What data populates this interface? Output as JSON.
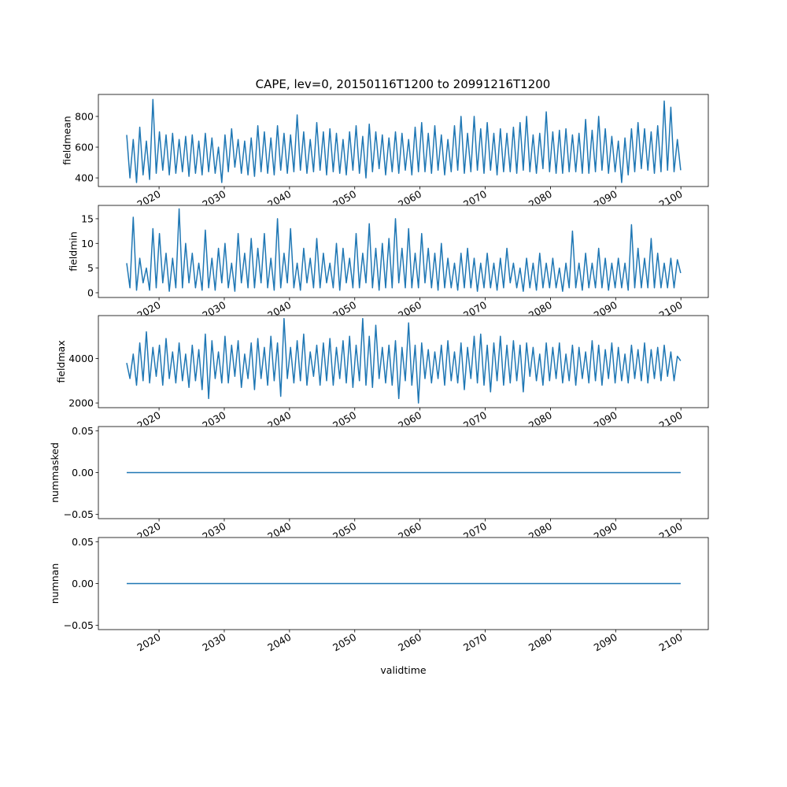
{
  "chart_data": [
    {
      "type": "line",
      "title": "CAPE, lev=0, 20150116T1200 to 20991216T1200",
      "ylabel": "fieldmean",
      "xlabel": "",
      "color": "#1f77b4",
      "x_range": [
        2015.04,
        2099.96
      ],
      "xlim": [
        2010.7,
        2104.2
      ],
      "ylim": [
        344,
        943
      ],
      "xticks": [
        2020,
        2030,
        2040,
        2050,
        2060,
        2070,
        2080,
        2090,
        2100
      ],
      "xtick_labels": [
        "2020",
        "2030",
        "2040",
        "2050",
        "2060",
        "2070",
        "2080",
        "2090",
        "2100"
      ],
      "yticks": [
        400,
        600,
        800
      ],
      "ytick_labels": [
        "400",
        "600",
        "800"
      ],
      "values": [
        680,
        400,
        650,
        370,
        730,
        420,
        640,
        390,
        910,
        430,
        700,
        450,
        680,
        420,
        690,
        430,
        650,
        440,
        670,
        410,
        680,
        430,
        640,
        420,
        690,
        440,
        660,
        430,
        600,
        370,
        680,
        440,
        720,
        470,
        650,
        430,
        640,
        420,
        660,
        410,
        740,
        440,
        700,
        430,
        660,
        420,
        740,
        450,
        690,
        430,
        680,
        440,
        810,
        450,
        700,
        430,
        650,
        440,
        760,
        450,
        700,
        420,
        720,
        440,
        690,
        430,
        650,
        420,
        700,
        450,
        740,
        430,
        670,
        400,
        750,
        440,
        700,
        460,
        680,
        420,
        660,
        440,
        700,
        430,
        690,
        450,
        650,
        420,
        730,
        440,
        760,
        440,
        690,
        430,
        740,
        450,
        680,
        420,
        650,
        440,
        740,
        450,
        800,
        430,
        690,
        440,
        800,
        450,
        720,
        430,
        760,
        450,
        690,
        420,
        720,
        440,
        690,
        440,
        730,
        430,
        760,
        450,
        800,
        440,
        680,
        430,
        690,
        460,
        830,
        440,
        700,
        430,
        710,
        430,
        720,
        440,
        680,
        440,
        690,
        430,
        780,
        430,
        710,
        440,
        800,
        450,
        720,
        430,
        670,
        440,
        640,
        370,
        660,
        420,
        720,
        440,
        760,
        460,
        720,
        450,
        700,
        430,
        740,
        440,
        900,
        450,
        860,
        440,
        650,
        450
      ]
    },
    {
      "type": "line",
      "ylabel": "fieldmin",
      "xlabel": "",
      "color": "#1f77b4",
      "x_range": [
        2015.04,
        2099.96
      ],
      "xlim": [
        2010.7,
        2104.2
      ],
      "ylim": [
        -0.96,
        17.7
      ],
      "xticks": [
        2020,
        2030,
        2040,
        2050,
        2060,
        2070,
        2080,
        2090,
        2100
      ],
      "xtick_labels": [
        "2020",
        "2030",
        "2040",
        "2050",
        "2060",
        "2070",
        "2080",
        "2090",
        "2100"
      ],
      "yticks": [
        0,
        5,
        10,
        15
      ],
      "ytick_labels": [
        "0",
        "5",
        "10",
        "15"
      ],
      "values": [
        6,
        1,
        15.3,
        0.5,
        7,
        2,
        5,
        0.5,
        13,
        1,
        12,
        2,
        8,
        0.3,
        7,
        1,
        17,
        1,
        10,
        2,
        8,
        1,
        6,
        0.5,
        12.7,
        1,
        7,
        0.5,
        9,
        2,
        10,
        1,
        6,
        0.3,
        12,
        2,
        8,
        1,
        11,
        1,
        9,
        2,
        12,
        1,
        7,
        0.5,
        15,
        1,
        8,
        2,
        13,
        1,
        6,
        0.5,
        9,
        2,
        7,
        1,
        11,
        1,
        8,
        2,
        6,
        1,
        10,
        0.5,
        9,
        2,
        7,
        1,
        12,
        1,
        8,
        2,
        14,
        1,
        9,
        0.5,
        10,
        1,
        11,
        1,
        15,
        2,
        9,
        1,
        13,
        1,
        8,
        1,
        12,
        2,
        9,
        1,
        8,
        0.5,
        10,
        1,
        7,
        1,
        6,
        0.5,
        8,
        1,
        9,
        1,
        7,
        0.3,
        6,
        1,
        8,
        1,
        6,
        0.5,
        7,
        1,
        9,
        2,
        6,
        1,
        5,
        0.3,
        7,
        1,
        6,
        0.5,
        8,
        1,
        6,
        1,
        7,
        1,
        5,
        0.3,
        6,
        1,
        12.5,
        1,
        6,
        0.5,
        8,
        1,
        6,
        1,
        9,
        1,
        7,
        0.5,
        6,
        1,
        7,
        1,
        6,
        0.5,
        13.8,
        1,
        9,
        1,
        7,
        1,
        11,
        1,
        8,
        1,
        6,
        1,
        7,
        1,
        6.7,
        4
      ]
    },
    {
      "type": "line",
      "ylabel": "fieldmax",
      "xlabel": "",
      "color": "#1f77b4",
      "x_range": [
        2015.04,
        2099.96
      ],
      "xlim": [
        2010.7,
        2104.2
      ],
      "ylim": [
        1790,
        5930
      ],
      "xticks": [
        2020,
        2030,
        2040,
        2050,
        2060,
        2070,
        2080,
        2090,
        2100
      ],
      "xtick_labels": [
        "2020",
        "2030",
        "2040",
        "2050",
        "2060",
        "2070",
        "2080",
        "2090",
        "2100"
      ],
      "yticks": [
        2000,
        4000
      ],
      "ytick_labels": [
        "2000",
        "4000"
      ],
      "values": [
        3800,
        3100,
        4200,
        2800,
        4700,
        3000,
        5200,
        2900,
        4500,
        3200,
        4600,
        2800,
        4900,
        3100,
        4300,
        2900,
        4700,
        3000,
        4200,
        2700,
        4600,
        3000,
        4400,
        2600,
        5100,
        2200,
        4800,
        3100,
        4300,
        2900,
        5000,
        2900,
        4600,
        3200,
        4800,
        2700,
        4200,
        3100,
        4700,
        2600,
        4900,
        3100,
        4500,
        2800,
        5000,
        3000,
        4700,
        2300,
        5800,
        3100,
        4500,
        2900,
        4800,
        3000,
        5100,
        2800,
        4300,
        3200,
        4600,
        2800,
        4700,
        3000,
        4900,
        2800,
        4500,
        3100,
        4800,
        2900,
        5000,
        2700,
        4600,
        3000,
        5800,
        2800,
        5000,
        2700,
        5500,
        3100,
        4500,
        2900,
        4600,
        2800,
        4800,
        2200,
        4500,
        3000,
        5600,
        2800,
        4600,
        2000,
        4700,
        3100,
        4400,
        2900,
        4300,
        3100,
        4600,
        2800,
        4800,
        3000,
        4300,
        2900,
        4700,
        2600,
        4500,
        3100,
        5000,
        2900,
        5100,
        2800,
        4600,
        2500,
        4700,
        3000,
        5000,
        2800,
        4600,
        2900,
        4800,
        3000,
        4600,
        2500,
        4700,
        3200,
        4500,
        3000,
        4200,
        2800,
        4700,
        3000,
        4500,
        3100,
        4700,
        2900,
        4200,
        3000,
        4600,
        2800,
        4500,
        3100,
        4300,
        2900,
        4800,
        3000,
        4600,
        2800,
        4400,
        3100,
        4700,
        2900,
        4500,
        3000,
        4200,
        2900,
        4600,
        3100,
        4400,
        3000,
        4700,
        2900,
        4400,
        3100,
        4500,
        3000,
        4600,
        3200,
        4300,
        3000,
        4100,
        3900
      ]
    },
    {
      "type": "line",
      "ylabel": "nummasked",
      "xlabel": "",
      "color": "#1f77b4",
      "x_range": [
        2015.04,
        2099.96
      ],
      "xlim": [
        2010.7,
        2104.2
      ],
      "ylim": [
        -0.055,
        0.055
      ],
      "xticks": [
        2020,
        2030,
        2040,
        2050,
        2060,
        2070,
        2080,
        2090,
        2100
      ],
      "xtick_labels": [
        "2020",
        "2030",
        "2040",
        "2050",
        "2060",
        "2070",
        "2080",
        "2090",
        "2100"
      ],
      "yticks": [
        -0.05,
        0,
        0.05
      ],
      "ytick_labels": [
        "−0.05",
        "0.00",
        "0.05"
      ],
      "values": [
        0,
        0
      ]
    },
    {
      "type": "line",
      "ylabel": "numnan",
      "xlabel": "validtime",
      "color": "#1f77b4",
      "x_range": [
        2015.04,
        2099.96
      ],
      "xlim": [
        2010.7,
        2104.2
      ],
      "ylim": [
        -0.055,
        0.055
      ],
      "xticks": [
        2020,
        2030,
        2040,
        2050,
        2060,
        2070,
        2080,
        2090,
        2100
      ],
      "xtick_labels": [
        "2020",
        "2030",
        "2040",
        "2050",
        "2060",
        "2070",
        "2080",
        "2090",
        "2100"
      ],
      "yticks": [
        -0.05,
        0,
        0.05
      ],
      "ytick_labels": [
        "−0.05",
        "0.00",
        "0.05"
      ],
      "values": [
        0,
        0
      ]
    }
  ]
}
